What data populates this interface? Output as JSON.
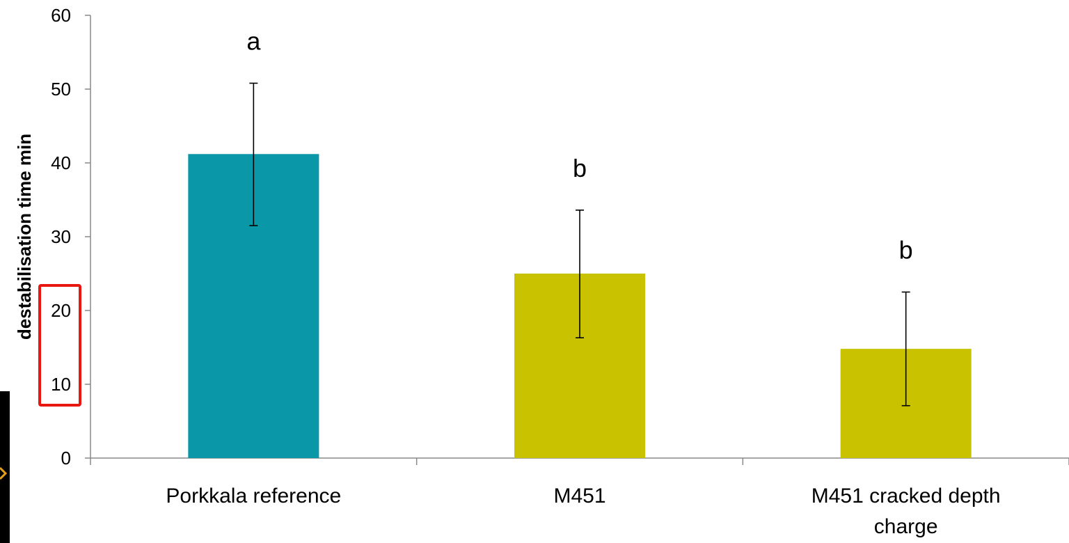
{
  "chart_data": {
    "type": "bar",
    "title": "",
    "xlabel": "",
    "ylabel": "destabilisation time min",
    "ylim": [
      0,
      60
    ],
    "yticks": [
      0,
      10,
      20,
      30,
      40,
      50,
      60
    ],
    "grid": false,
    "categories": [
      [
        "Porkkala reference"
      ],
      [
        "M451"
      ],
      [
        "M451 cracked depth",
        "charge"
      ]
    ],
    "values": [
      41.2,
      25.0,
      14.8
    ],
    "error_low": [
      31.5,
      16.3,
      7.1
    ],
    "error_high": [
      50.8,
      33.6,
      22.5
    ],
    "significance_letters": [
      "a",
      "b",
      "b"
    ],
    "colors": [
      "#0a97a8",
      "#c8c200",
      "#c8c200"
    ],
    "highlight": {
      "description_tick_range": [
        10,
        20
      ],
      "color": "#e8170f"
    }
  },
  "decor": {
    "left_strip_color": "#000000",
    "left_strip_accent": "#e6a021"
  }
}
